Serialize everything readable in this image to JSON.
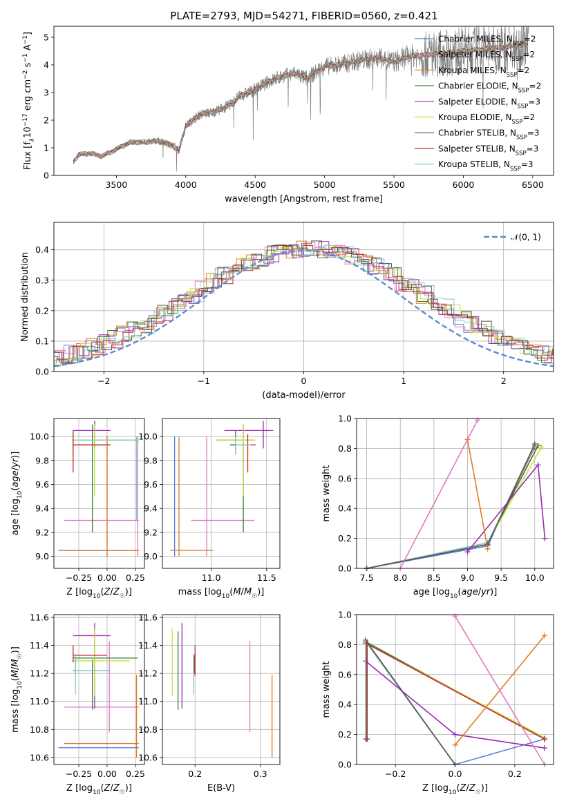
{
  "colors": {
    "Chabrier MILES": "#5b7fd6",
    "Salpeter MILES": "#e377c2",
    "Kroupa MILES": "#e07b22",
    "Chabrier ELODIE": "#2e7d32",
    "Salpeter ELODIE": "#9c27b0",
    "Kroupa ELODIE": "#cddc39",
    "Chabrier STELIB": "#555555",
    "Salpeter STELIB": "#c62828",
    "Kroupa STELIB": "#80cbc4",
    "data": "#808080",
    "normal": "#5b8ad6"
  },
  "chart_data": [
    {
      "id": "spectrum",
      "type": "line",
      "title": "PLATE=2793, MJD=54271, FIBERID=0560, z=0.421",
      "xlabel": "wavelength [Angstrom, rest frame]",
      "ylabel": "Flux [f_λ10^-17 erg cm^-2 s^-1 A^-1]",
      "xlim": [
        3050,
        6650
      ],
      "ylim": [
        0,
        5.4
      ],
      "xticks": [
        3500,
        4000,
        4500,
        5000,
        5500,
        6000,
        6500
      ],
      "yticks": [
        0,
        1,
        2,
        3,
        4,
        5
      ],
      "legend_placement": "upper right",
      "legend": [
        {
          "name": "Chabrier MILES, N",
          "sub": "SSP",
          "suffix": "=2"
        },
        {
          "name": "Salpeter MILES, N",
          "sub": "SSP",
          "suffix": "=2"
        },
        {
          "name": "Kroupa MILES, N",
          "sub": "SSP",
          "suffix": "=2"
        },
        {
          "name": "Chabrier ELODIE, N",
          "sub": "SSP",
          "suffix": "=2"
        },
        {
          "name": "Salpeter ELODIE, N",
          "sub": "SSP",
          "suffix": "=3"
        },
        {
          "name": "Kroupa ELODIE, N",
          "sub": "SSP",
          "suffix": "=2"
        },
        {
          "name": "Chabrier STELIB, N",
          "sub": "SSP",
          "suffix": "=3"
        },
        {
          "name": "Salpeter STELIB, N",
          "sub": "SSP",
          "suffix": "=3"
        },
        {
          "name": "Kroupa STELIB, N",
          "sub": "SSP",
          "suffix": "=3"
        }
      ],
      "data_x": [
        3190,
        3230,
        3300,
        3400,
        3500,
        3600,
        3700,
        3800,
        3900,
        3950,
        4000,
        4100,
        4200,
        4300,
        4400,
        4500,
        4600,
        4700,
        4800,
        4860,
        4900,
        5000,
        5100,
        5200,
        5300,
        5400,
        5500,
        5600,
        5700,
        5800,
        5900,
        6000,
        6100,
        6200,
        6300,
        6400,
        6470
      ],
      "data_y": [
        0.5,
        0.75,
        0.8,
        0.7,
        0.95,
        1.2,
        1.2,
        1.25,
        1.1,
        0.9,
        1.8,
        2.2,
        2.3,
        2.5,
        2.9,
        3.1,
        3.4,
        3.6,
        3.7,
        3.5,
        3.6,
        3.95,
        4.0,
        4.1,
        4.2,
        4.25,
        4.1,
        4.3,
        4.35,
        4.4,
        4.45,
        4.5,
        4.55,
        4.6,
        4.65,
        4.7,
        4.75
      ]
    },
    {
      "id": "residuals",
      "type": "step",
      "xlabel": "(data-model)/error",
      "ylabel": "Normed distribution",
      "xlim": [
        -2.5,
        2.5
      ],
      "ylim": [
        0,
        0.49
      ],
      "xticks": [
        -2,
        -1,
        0,
        1,
        2
      ],
      "yticks": [
        0.0,
        0.1,
        0.2,
        0.3,
        0.4
      ],
      "grid": true,
      "legend_placement": "upper right",
      "legend": [
        "𝒩(0, 1)"
      ],
      "bins": [
        -2.6,
        -2.5,
        -2.4,
        -2.3,
        -2.2,
        -2.1,
        -2.0,
        -1.9,
        -1.8,
        -1.7,
        -1.6,
        -1.5,
        -1.4,
        -1.3,
        -1.2,
        -1.1,
        -1.0,
        -0.9,
        -0.8,
        -0.7,
        -0.6,
        -0.5,
        -0.4,
        -0.3,
        -0.2,
        -0.1,
        0.0,
        0.1,
        0.2,
        0.3,
        0.4,
        0.5,
        0.6,
        0.7,
        0.8,
        0.9,
        1.0,
        1.1,
        1.2,
        1.3,
        1.4,
        1.5,
        1.6,
        1.7,
        1.8,
        1.9,
        2.0,
        2.1,
        2.2,
        2.3,
        2.4,
        2.5,
        2.6
      ]
    },
    {
      "id": "age_vs_Z",
      "type": "errorbar",
      "xlabel": "Z [log10(Z/Z☉)]",
      "ylabel": "age  [log10(age/yr)]",
      "xlim": [
        -0.47,
        0.33
      ],
      "ylim": [
        8.9,
        10.15
      ],
      "xticks": [
        -0.25,
        0.0,
        0.25
      ],
      "yticks": [
        9.0,
        9.2,
        9.4,
        9.6,
        9.8,
        10.0
      ],
      "grid": true
    },
    {
      "id": "age_vs_mass",
      "type": "errorbar",
      "xlabel": "mass [log10(M/M☉)]",
      "ylabel": "",
      "xlim": [
        10.56,
        11.62
      ],
      "ylim": [
        8.9,
        10.15
      ],
      "xticks": [
        11.0,
        11.5
      ],
      "yticks": [
        9.0,
        9.2,
        9.4,
        9.6,
        9.8,
        10.0
      ],
      "grid": true
    },
    {
      "id": "weight_vs_age",
      "type": "line",
      "xlabel": "age  [log10(age/yr)]",
      "ylabel": "mass weight",
      "xlim": [
        7.35,
        10.28
      ],
      "ylim": [
        0,
        1
      ],
      "xticks": [
        7.5,
        8.0,
        8.5,
        9.0,
        9.5,
        10.0
      ],
      "yticks": [
        0.0,
        0.2,
        0.4,
        0.6,
        0.8,
        1.0
      ],
      "grid": true
    },
    {
      "id": "mass_vs_Z",
      "type": "errorbar",
      "xlabel": "Z [log10(Z/Z☉)]",
      "ylabel": "mass [log10(M/M☉)]",
      "xlim": [
        -0.47,
        0.33
      ],
      "ylim": [
        10.55,
        11.62
      ],
      "xticks": [
        -0.25,
        0.0,
        0.25
      ],
      "yticks": [
        10.6,
        10.8,
        11.0,
        11.2,
        11.4,
        11.6
      ],
      "grid": true
    },
    {
      "id": "mass_vs_ebv",
      "type": "errorbar",
      "xlabel": "E(B-V)",
      "ylabel": "",
      "xlim": [
        0.15,
        0.33
      ],
      "ylim": [
        10.55,
        11.62
      ],
      "xticks": [
        0.2,
        0.3
      ],
      "yticks": [
        10.6,
        10.8,
        11.0,
        11.2,
        11.4,
        11.6
      ],
      "grid": true
    },
    {
      "id": "weight_vs_Z",
      "type": "line",
      "xlabel": "Z [log10(Z/Z☉)]",
      "ylabel": "mass weight",
      "xlim": [
        -0.33,
        0.33
      ],
      "ylim": [
        0,
        1
      ],
      "xticks": [
        -0.2,
        0.0,
        0.2
      ],
      "yticks": [
        0.0,
        0.2,
        0.4,
        0.6,
        0.8,
        1.0
      ],
      "grid": true
    }
  ],
  "fits": [
    {
      "name": "Chabrier MILES",
      "Z": 0.0,
      "Zerr": 0.29,
      "age": 9.05,
      "ageErr": 0.0,
      "mass": 10.67,
      "massErr": 0.0,
      "ebv": 0.2,
      "ebvErr": 0.0,
      "wAges": [
        7.5,
        9.3,
        10.0
      ],
      "wVals": [
        0.0,
        0.15,
        0.82
      ],
      "wZ": [
        -0.3,
        0.0,
        0.3
      ],
      "wZv": [
        0.82,
        0.0,
        0.17
      ]
    },
    {
      "name": "Salpeter MILES",
      "Z": 0.02,
      "Zerr": 0.27,
      "age": 9.3,
      "ageErr": 0.0,
      "mass": 10.96,
      "massErr": 0.0,
      "ebv": 0.284,
      "ebvErr": 0.0,
      "wAges": [
        8.0,
        9.15
      ],
      "wVals": [
        0.0,
        0.99
      ],
      "wZ": [
        0.0,
        0.3
      ],
      "wZv": [
        0.99,
        0.0
      ]
    },
    {
      "name": "Kroupa MILES",
      "Z": -0.05,
      "Zerr": 0.33,
      "age": 9.05,
      "ageErr": 0.0,
      "mass": 10.7,
      "massErr": 0.0,
      "ebv": 0.318,
      "ebvErr": 0.0,
      "wAges": [
        9.0,
        9.3
      ],
      "wVals": [
        0.86,
        0.13
      ],
      "wZ": [
        0.0,
        0.3
      ],
      "wZv": [
        0.13,
        0.86
      ]
    },
    {
      "name": "Chabrier ELODIE",
      "Z": -0.13,
      "Zerr": 0.0,
      "age": 9.97,
      "ageErr": 0.17,
      "mass": 11.06,
      "massErr": 0.0,
      "ebv": 0.175,
      "ebvErr": 0.0,
      "wAges": [
        7.5,
        9.3,
        10.05
      ],
      "wVals": [
        0.0,
        0.17,
        0.82
      ],
      "wZ": [
        -0.3,
        0.3
      ],
      "wZv": [
        0.82,
        0.17
      ]
    },
    {
      "name": "Salpeter ELODIE",
      "Z": -0.11,
      "Zerr": 0.12,
      "age": 10.05,
      "ageErr": 0.0,
      "mass": 11.47,
      "massErr": 0.0,
      "ebv": 0.18,
      "ebvErr": 0.0,
      "wAges": [
        9.0,
        10.05,
        10.15
      ],
      "wVals": [
        0.11,
        0.69,
        0.2
      ],
      "wZ": [
        -0.3,
        0.0,
        0.3
      ],
      "wZv": [
        0.69,
        0.2,
        0.11
      ]
    },
    {
      "name": "Kroupa ELODIE",
      "Z": -0.1,
      "Zerr": 0.2,
      "age": 9.97,
      "ageErr": 0.0,
      "mass": 11.29,
      "massErr": 0.0,
      "ebv": 0.165,
      "ebvErr": 0.0,
      "wAges": [
        7.5,
        9.3,
        10.1
      ],
      "wVals": [
        0.0,
        0.17,
        0.81
      ],
      "wZ": [
        -0.3,
        0.3
      ],
      "wZv": [
        0.81,
        0.18
      ]
    },
    {
      "name": "Chabrier STELIB",
      "Z": -0.15,
      "Zerr": 0.0,
      "age": 9.93,
      "ageErr": 0.0,
      "mass": 11.22,
      "massErr": 0.0,
      "ebv": 0.198,
      "ebvErr": 0.0,
      "wAges": [
        7.5,
        9.3,
        10.0
      ],
      "wVals": [
        0.0,
        0.16,
        0.83
      ],
      "wZ": [
        -0.3,
        0.0
      ],
      "wZv": [
        0.83,
        0.0
      ]
    },
    {
      "name": "Salpeter STELIB",
      "Z": -0.18,
      "Zerr": 0.06,
      "age": 9.93,
      "ageErr": 0.0,
      "mass": 11.33,
      "massErr": 0.0,
      "ebv": 0.2,
      "ebvErr": 0.0,
      "wAges": [
        7.5,
        9.3,
        10.0
      ],
      "wVals": [
        0.0,
        0.17,
        0.81
      ],
      "wZ": [
        -0.3,
        0.3
      ],
      "wZv": [
        0.81,
        0.17
      ]
    },
    {
      "name": "Kroupa STELIB",
      "Z": -0.15,
      "Zerr": 0.05,
      "age": 9.97,
      "ageErr": 0.0,
      "mass": 11.22,
      "massErr": 0.0,
      "ebv": 0.2,
      "ebvErr": 0.0,
      "wAges": [
        7.5,
        9.3,
        10.0
      ],
      "wVals": [
        0.0,
        0.17,
        0.82
      ],
      "wZ": [
        -0.3,
        0.0
      ],
      "wZv": [
        0.82,
        0.0
      ]
    }
  ]
}
